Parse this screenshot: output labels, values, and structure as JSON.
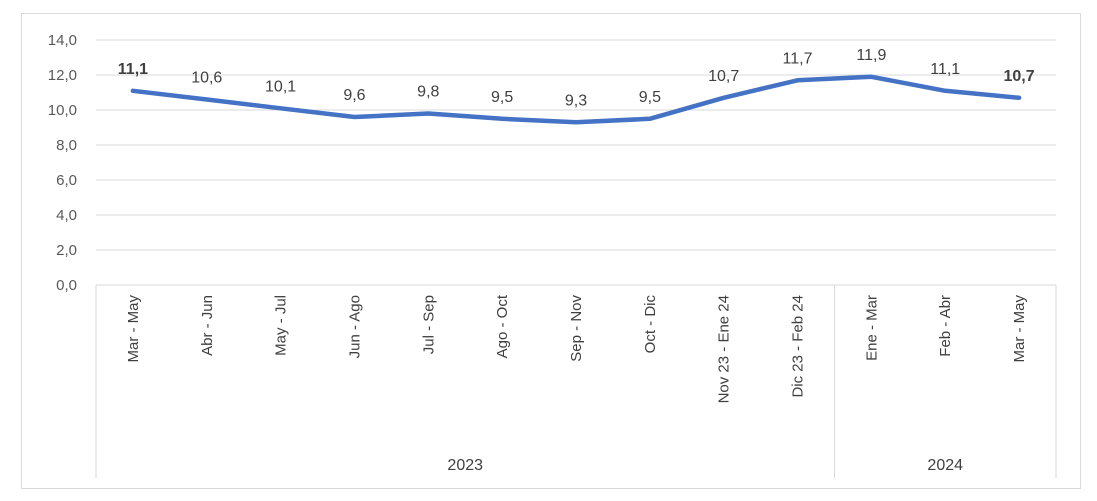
{
  "chart_data": {
    "type": "line",
    "categories": [
      "Mar - May",
      "Abr - Jun",
      "May - Jul",
      "Jun - Ago",
      "Jul - Sep",
      "Ago - Oct",
      "Sep - Nov",
      "Oct - Dic",
      "Nov 23 - Ene 24",
      "Dic 23 - Feb 24",
      "Ene - Mar",
      "Feb - Abr",
      "Mar - May"
    ],
    "groups": [
      {
        "label": "2023",
        "start": 0,
        "end": 9
      },
      {
        "label": "2024",
        "start": 10,
        "end": 12
      }
    ],
    "series": [
      {
        "values": [
          11.1,
          10.6,
          10.1,
          9.6,
          9.8,
          9.5,
          9.3,
          9.5,
          10.7,
          11.7,
          11.9,
          11.1,
          10.7
        ],
        "color": "#4472c4"
      }
    ],
    "data_labels": [
      "11,1",
      "10,6",
      "10,1",
      "9,6",
      "9,8",
      "9,5",
      "9,3",
      "9,5",
      "10,7",
      "11,7",
      "11,9",
      "11,1",
      "10,7"
    ],
    "bold_labels": [
      0,
      12
    ],
    "yticks": [
      "0,0",
      "2,0",
      "4,0",
      "6,0",
      "8,0",
      "10,0",
      "12,0",
      "14,0"
    ],
    "ylim": [
      0,
      14
    ],
    "ystep": 2,
    "grid": true,
    "gridColor": "#d9d9d9",
    "title": "",
    "xlabel": "",
    "ylabel": ""
  }
}
